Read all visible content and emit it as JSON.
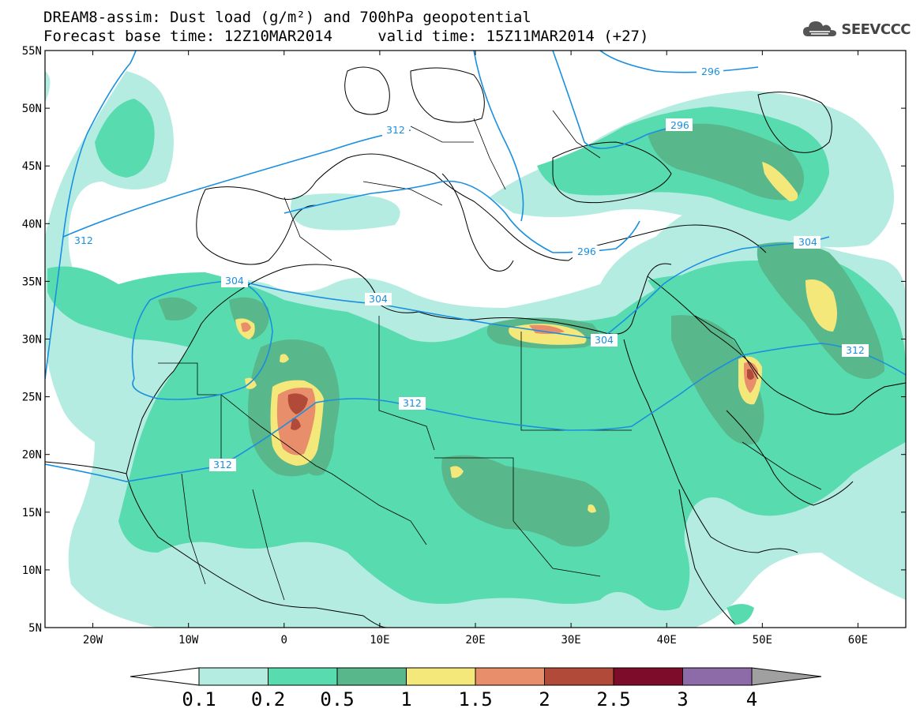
{
  "header": {
    "line1": "DREAM8-assim: Dust load (g/m²) and 700hPa geopotential",
    "line2": "Forecast base time: 12Z10MAR2014     valid time: 15Z11MAR2014 (+27)"
  },
  "logo": {
    "text": "SEEVCCC",
    "icon": "cloud-icon"
  },
  "map": {
    "lat_range": [
      5,
      55
    ],
    "lon_range": [
      -25,
      65
    ],
    "lat_ticks": [
      "55N",
      "50N",
      "45N",
      "40N",
      "35N",
      "30N",
      "25N",
      "20N",
      "15N",
      "10N",
      "5N"
    ],
    "lon_ticks": [
      "20W",
      "10W",
      "0",
      "10E",
      "20E",
      "30E",
      "40E",
      "50E",
      "60E"
    ],
    "isolines": [
      {
        "label": "296"
      },
      {
        "label": "296"
      },
      {
        "label": "296"
      },
      {
        "label": "304"
      },
      {
        "label": "304"
      },
      {
        "label": "304"
      },
      {
        "label": "304"
      },
      {
        "label": "312"
      },
      {
        "label": "312"
      },
      {
        "label": "312"
      },
      {
        "label": "312"
      },
      {
        "label": "312"
      }
    ]
  },
  "colorbar": {
    "levels": [
      "0.1",
      "0.2",
      "0.5",
      "1",
      "1.5",
      "2",
      "2.5",
      "3",
      "4"
    ],
    "colors": [
      "#ffffff",
      "#b5ece2",
      "#58dcaf",
      "#58b78b",
      "#f5e87a",
      "#e98e6a",
      "#b24a3a",
      "#7d0c2a",
      "#8c6ba8",
      "#a0a0a0"
    ]
  }
}
